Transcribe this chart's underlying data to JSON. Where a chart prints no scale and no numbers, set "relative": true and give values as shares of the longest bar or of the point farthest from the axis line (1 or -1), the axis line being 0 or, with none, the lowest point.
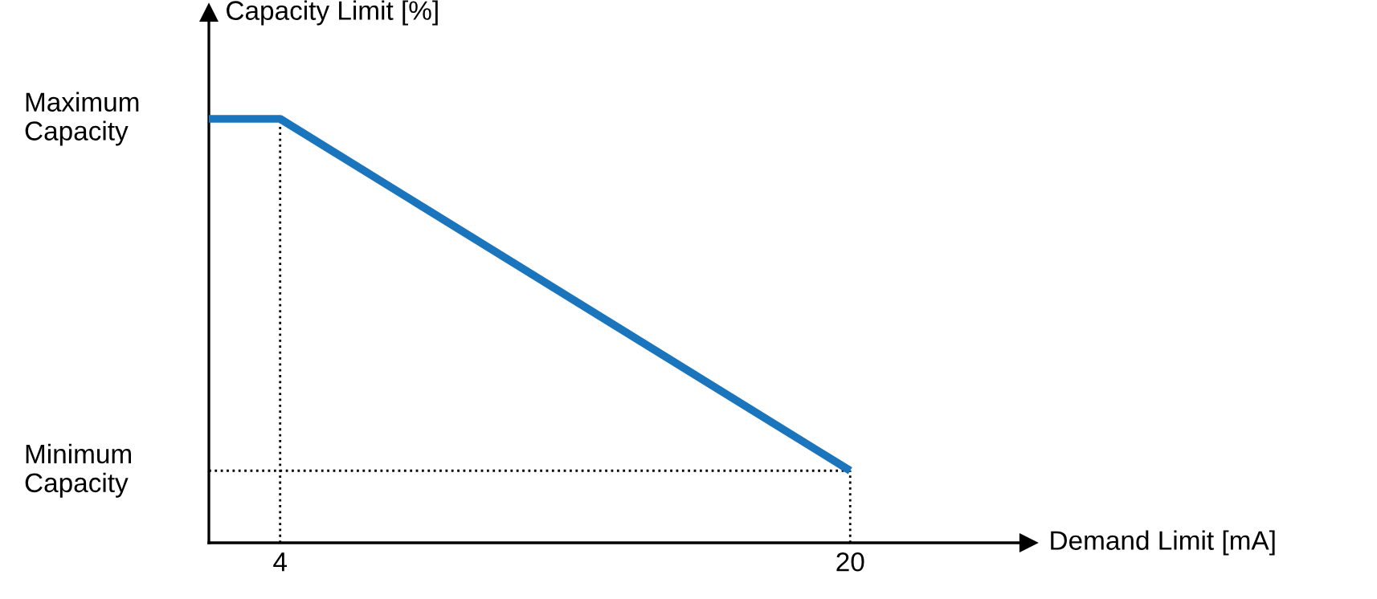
{
  "chart_data": {
    "type": "line",
    "relative": true,
    "xlabel": "Demand Limit [mA]",
    "ylabel": "Capacity Limit [%]",
    "xlim": [
      2,
      25
    ],
    "xticks": [
      4,
      20
    ],
    "ref_lines": [
      {
        "axis": "x",
        "value": 4,
        "color": "#000000",
        "line_style": "dotted"
      },
      {
        "axis": "x",
        "value": 20,
        "color": "#000000",
        "line_style": "dotted"
      }
    ],
    "annotations": [
      "Maximum\nCapacity",
      "Minimum\nCapacity"
    ],
    "series": [
      {
        "color": "#1a75bc",
        "x": [
          2,
          4,
          20
        ],
        "values": [
          1,
          1,
          0.17
        ]
      },
      {
        "color": "#000000",
        "line_style": "dotted",
        "x": [
          2,
          20
        ],
        "values": [
          0.17,
          0.17
        ]
      }
    ]
  }
}
